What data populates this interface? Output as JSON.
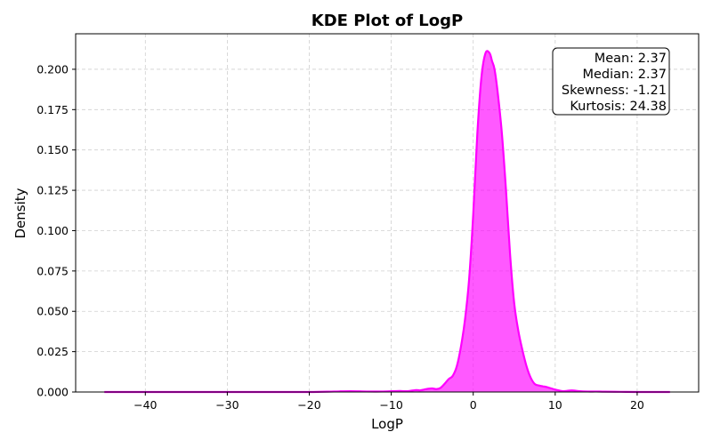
{
  "chart_data": {
    "type": "area",
    "title": "KDE Plot of LogP",
    "xlabel": "LogP",
    "ylabel": "Density",
    "xlim": [
      -48.5,
      27.5
    ],
    "ylim": [
      0,
      0.222
    ],
    "xticks": [
      -40,
      -30,
      -20,
      -10,
      0,
      10,
      20
    ],
    "yticks": [
      0.0,
      0.025,
      0.05,
      0.075,
      0.1,
      0.125,
      0.15,
      0.175,
      0.2
    ],
    "xtick_labels": [
      "−40",
      "−30",
      "−20",
      "−10",
      "0",
      "10",
      "20"
    ],
    "ytick_labels": [
      "0.000",
      "0.025",
      "0.050",
      "0.075",
      "0.100",
      "0.125",
      "0.150",
      "0.175",
      "0.200"
    ],
    "grid": true,
    "color": "#ff00ff",
    "series": [
      {
        "x": [
          -45,
          -40,
          -35,
          -30,
          -25,
          -20,
          -17,
          -15,
          -13,
          -11,
          -9,
          -8,
          -7,
          -6.5,
          -6,
          -5.5,
          -5,
          -4.5,
          -4,
          -3.5,
          -3,
          -2.5,
          -2,
          -1.5,
          -1,
          -0.5,
          0,
          0.5,
          1,
          1.5,
          2,
          2.3,
          2.6,
          3,
          3.5,
          4,
          4.5,
          5,
          5.5,
          6,
          6.5,
          7,
          7.5,
          8,
          8.5,
          9,
          10,
          11,
          12,
          13,
          14,
          15,
          16,
          18,
          20,
          22,
          24
        ],
        "y": [
          0.0,
          0.0,
          0.0,
          0.0,
          0.0,
          0.0,
          0.0003,
          0.0005,
          0.0003,
          0.0003,
          0.0006,
          0.0005,
          0.0012,
          0.001,
          0.0015,
          0.002,
          0.0022,
          0.0018,
          0.0025,
          0.005,
          0.008,
          0.01,
          0.016,
          0.028,
          0.045,
          0.07,
          0.11,
          0.16,
          0.195,
          0.21,
          0.21,
          0.205,
          0.2,
          0.185,
          0.16,
          0.125,
          0.085,
          0.055,
          0.038,
          0.026,
          0.016,
          0.009,
          0.005,
          0.004,
          0.0035,
          0.003,
          0.0015,
          0.0005,
          0.001,
          0.0005,
          0.0003,
          0.0003,
          0.0002,
          0.0001,
          0.0,
          0.0,
          0.0
        ]
      }
    ],
    "stats": [
      "Mean: 2.37",
      "Median: 2.37",
      "Skewness: -1.21",
      "Kurtosis: 24.38"
    ]
  }
}
